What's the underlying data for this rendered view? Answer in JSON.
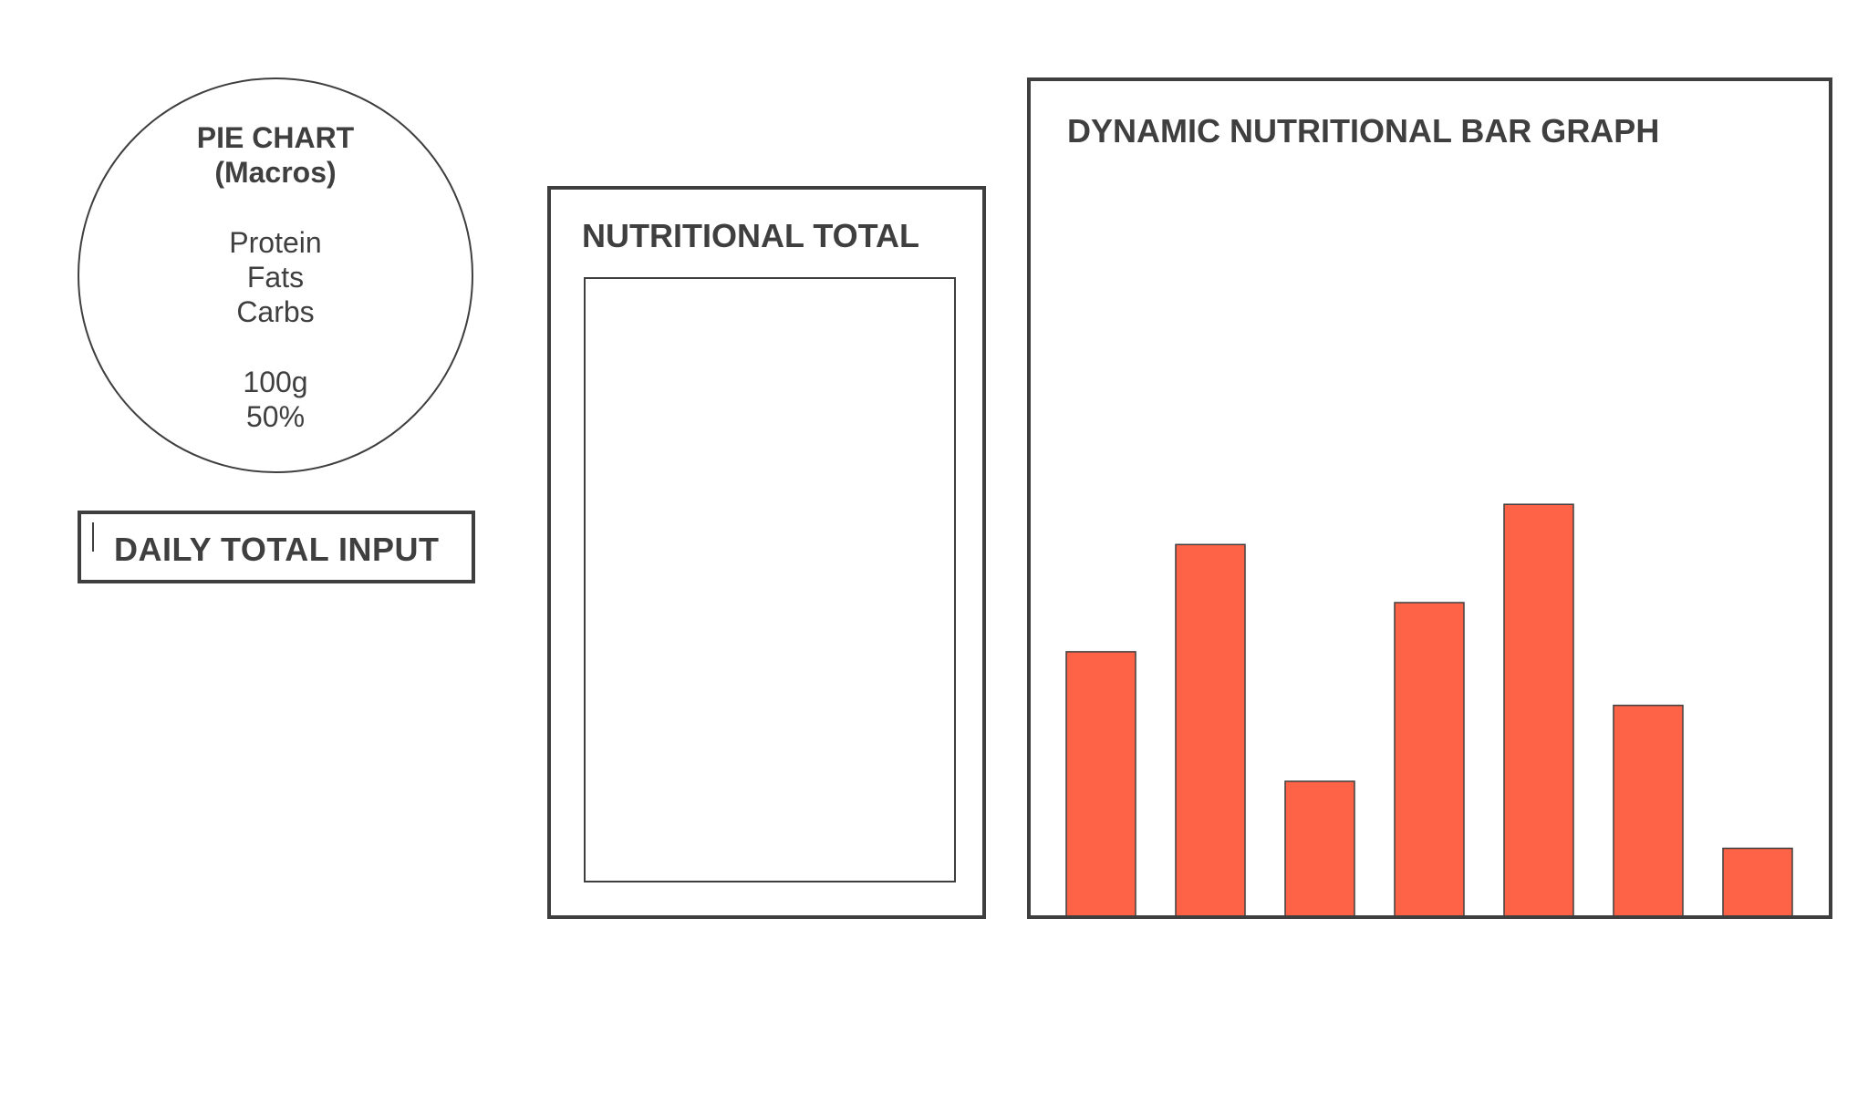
{
  "pie_chart": {
    "title_line1": "PIE CHART",
    "title_line2": "(Macros)",
    "macros": [
      "Protein",
      "Fats",
      "Carbs"
    ],
    "amount": "100g",
    "percent": "50%"
  },
  "daily_input": {
    "label": "DAILY TOTAL INPUT"
  },
  "nutritional_total": {
    "title": "NUTRITIONAL TOTAL"
  },
  "bar_graph": {
    "title": "DYNAMIC NUTRITIONAL BAR GRAPH",
    "bar_color": "#ff6347",
    "outline_color": "#3f3f3f"
  },
  "chart_data": {
    "type": "bar",
    "title": "DYNAMIC NUTRITIONAL BAR GRAPH",
    "categories": [
      "",
      "",
      "",
      "",
      "",
      "",
      ""
    ],
    "values": [
      0.59,
      0.83,
      0.3,
      0.7,
      0.92,
      0.47,
      0.15
    ],
    "ylim": [
      0,
      1
    ],
    "xlabel": "",
    "ylabel": "",
    "grid": false
  }
}
